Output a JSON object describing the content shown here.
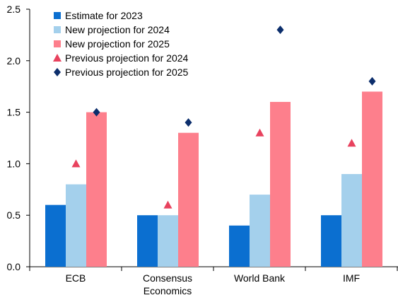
{
  "chart_data": {
    "type": "bar",
    "categories": [
      [
        "ECB"
      ],
      [
        "Consensus",
        "Economics"
      ],
      [
        "World Bank"
      ],
      [
        "IMF"
      ]
    ],
    "bar_series": [
      {
        "name": "Estimate for 2023",
        "color": "#0b6fd0",
        "values": [
          0.6,
          0.5,
          0.4,
          0.5
        ]
      },
      {
        "name": "New projection for 2024",
        "color": "#a4d0ec",
        "values": [
          0.8,
          0.5,
          0.7,
          0.9
        ]
      },
      {
        "name": "New projection for 2025",
        "color": "#fd7f8c",
        "values": [
          1.5,
          1.3,
          1.6,
          1.7
        ]
      }
    ],
    "marker_series": [
      {
        "name": "Previous projection for 2024",
        "color": "#e8425e",
        "marker": "triangle",
        "values": [
          1.0,
          0.6,
          1.3,
          1.2
        ]
      },
      {
        "name": "Previous projection for 2025",
        "color": "#0c2e6c",
        "marker": "diamond",
        "values": [
          1.5,
          1.4,
          2.3,
          1.8
        ]
      }
    ],
    "ylim": [
      0,
      2.5
    ],
    "yticks": [
      "0.0",
      "0.5",
      "1.0",
      "1.5",
      "2.0",
      "2.5"
    ],
    "grid": false,
    "legend_position": "top-left"
  }
}
